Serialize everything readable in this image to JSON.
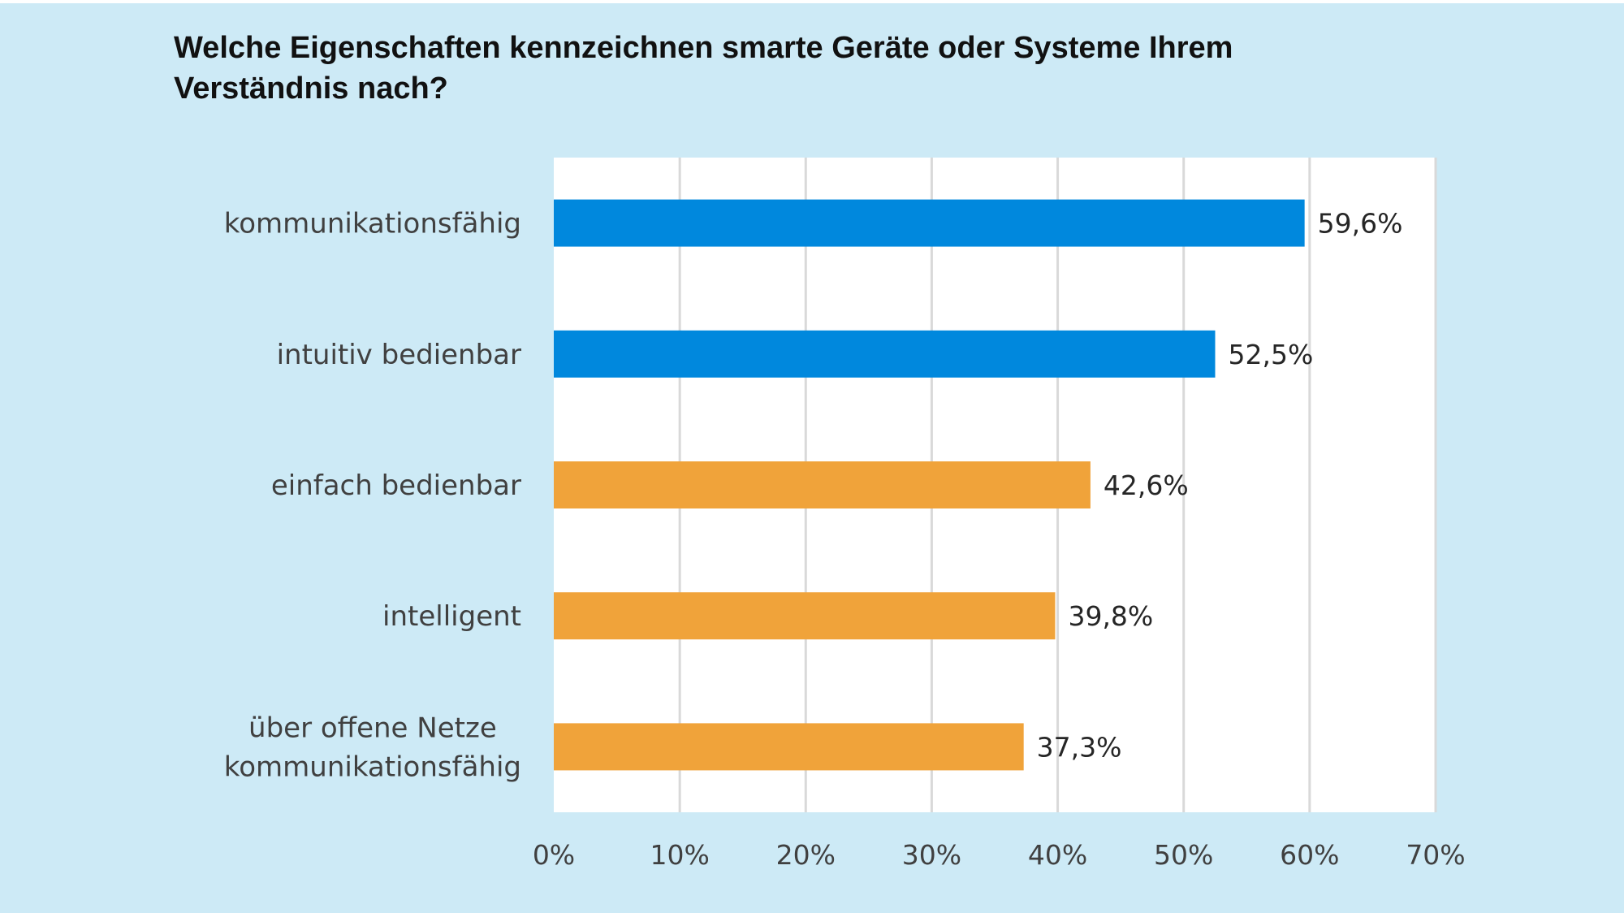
{
  "title": {
    "line1": "Welche Eigenschaften kennzeichnen smarte Geräte oder Systeme Ihrem",
    "line2": "Verständnis nach?"
  },
  "chart_data": {
    "type": "bar",
    "orientation": "horizontal",
    "title": "Welche Eigenschaften kennzeichnen smarte Geräte oder Systeme Ihrem Verständnis nach?",
    "xlabel": "",
    "ylabel": "",
    "xlim": [
      0,
      70
    ],
    "x_ticks": [
      "0%",
      "10%",
      "20%",
      "30%",
      "40%",
      "50%",
      "60%",
      "70%"
    ],
    "grid": true,
    "legend": "none",
    "categories": [
      [
        "kommunikationsfähig"
      ],
      [
        "intuitiv bedienbar"
      ],
      [
        "einfach bedienbar"
      ],
      [
        "intelligent"
      ],
      [
        "über offene Netze",
        "kommunikationsfähig"
      ]
    ],
    "values": [
      59.6,
      52.5,
      42.6,
      39.8,
      37.3
    ],
    "value_labels": [
      "59,6%",
      "52,5%",
      "42,6%",
      "39,8%",
      "37,3%"
    ],
    "bar_colors": [
      "#0088dd",
      "#0088dd",
      "#f0a33a",
      "#f0a33a",
      "#f0a33a"
    ],
    "colors": {
      "background": "#cdeaf6",
      "plot_area": "#ffffff",
      "gridline": "#d9d9d9"
    }
  }
}
